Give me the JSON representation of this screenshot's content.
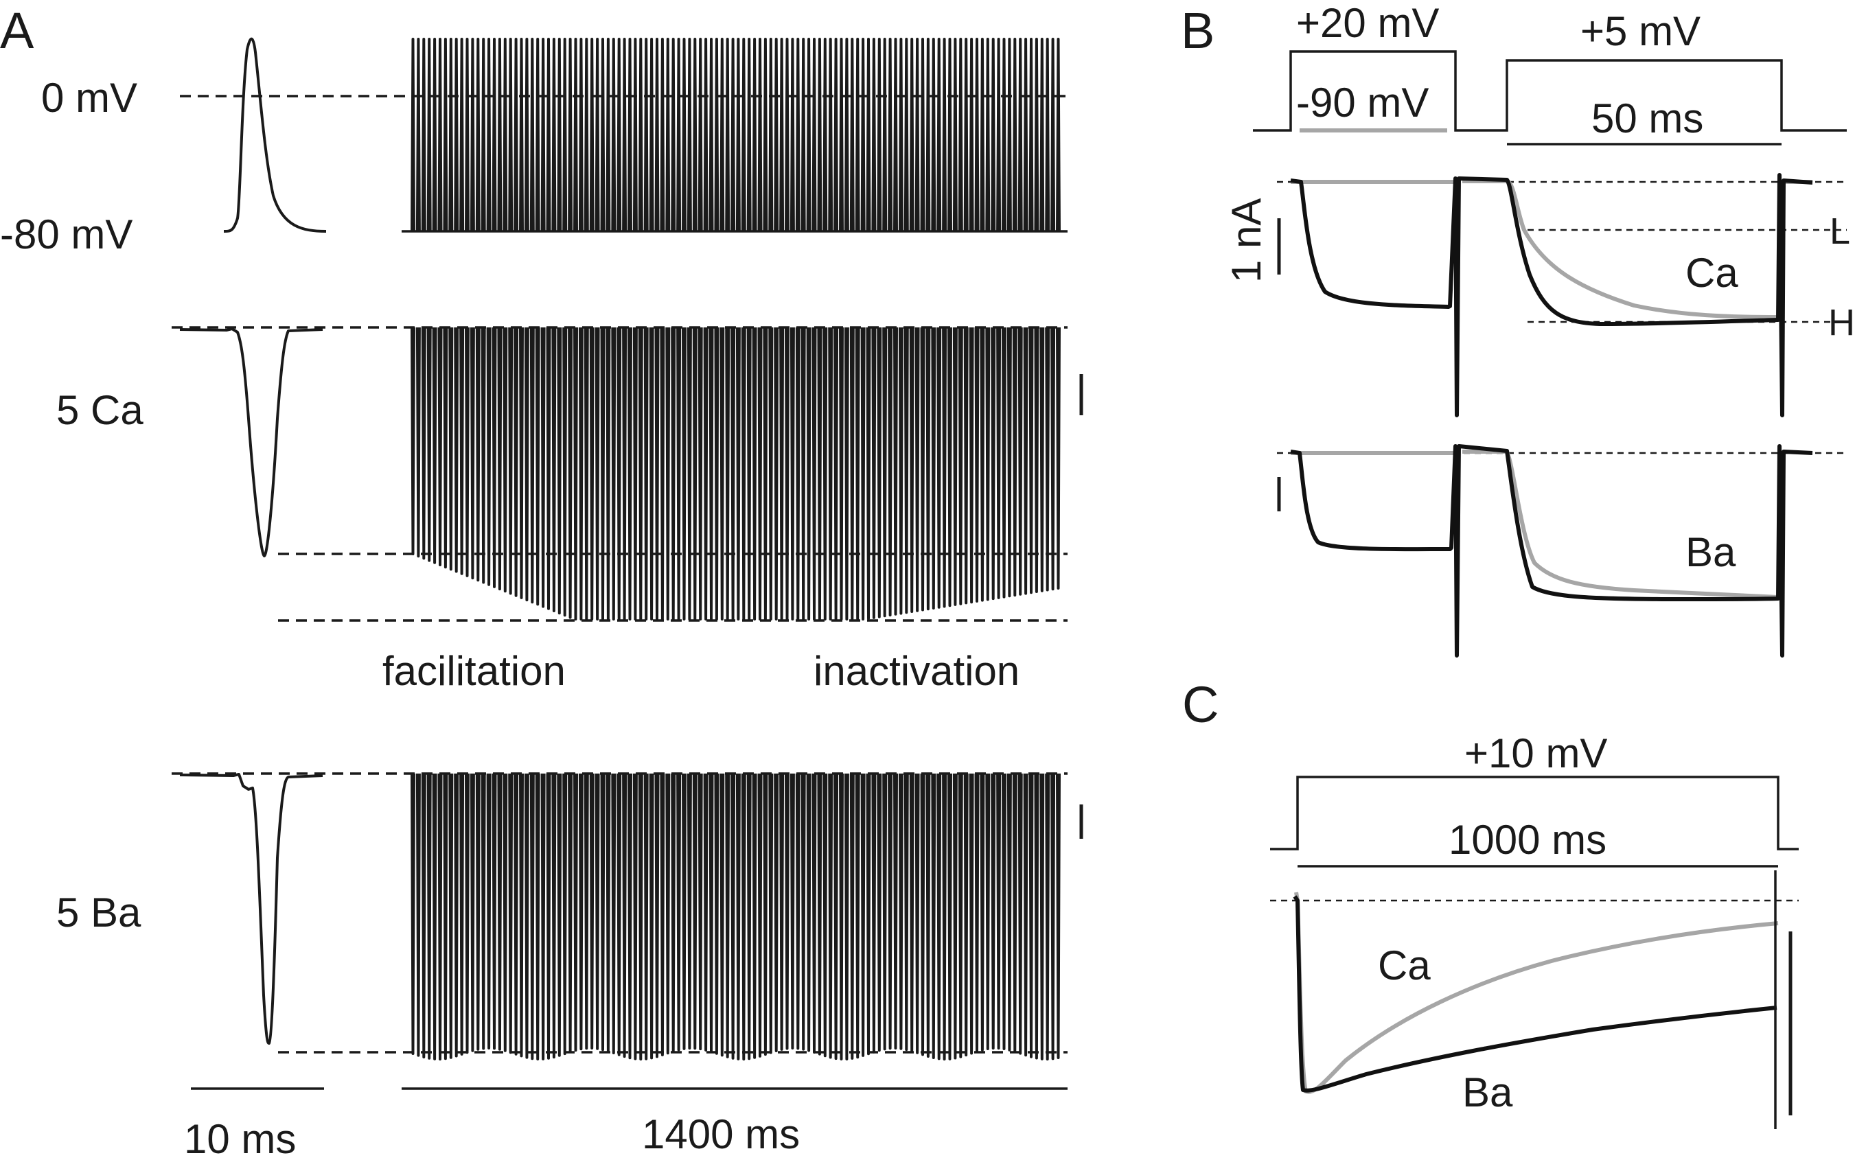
{
  "panelA": {
    "letter": "A",
    "v_label_0": "0 mV",
    "v_label_m80": "-80 mV",
    "row_ca": "5 Ca",
    "row_ba": "5 Ba",
    "facilitation": "facilitation",
    "inactivation": "inactivation",
    "scale_short": "10 ms",
    "scale_long": "1400 ms"
  },
  "panelB": {
    "letter": "B",
    "prepulse": "+20 mV",
    "holding": "-90 mV",
    "testpulse": "+5 mV",
    "duration": "50 ms",
    "scale_current": "1 nA",
    "ca_label": "Ca",
    "ba_label": "Ba",
    "level_low": "L",
    "level_high": "H"
  },
  "panelC": {
    "letter": "C",
    "pulse": "+10 mV",
    "duration": "1000 ms",
    "ca_label": "Ca",
    "ba_label": "Ba"
  },
  "colors": {
    "trace_black": "#111111",
    "trace_gray": "#a6a6a6"
  }
}
